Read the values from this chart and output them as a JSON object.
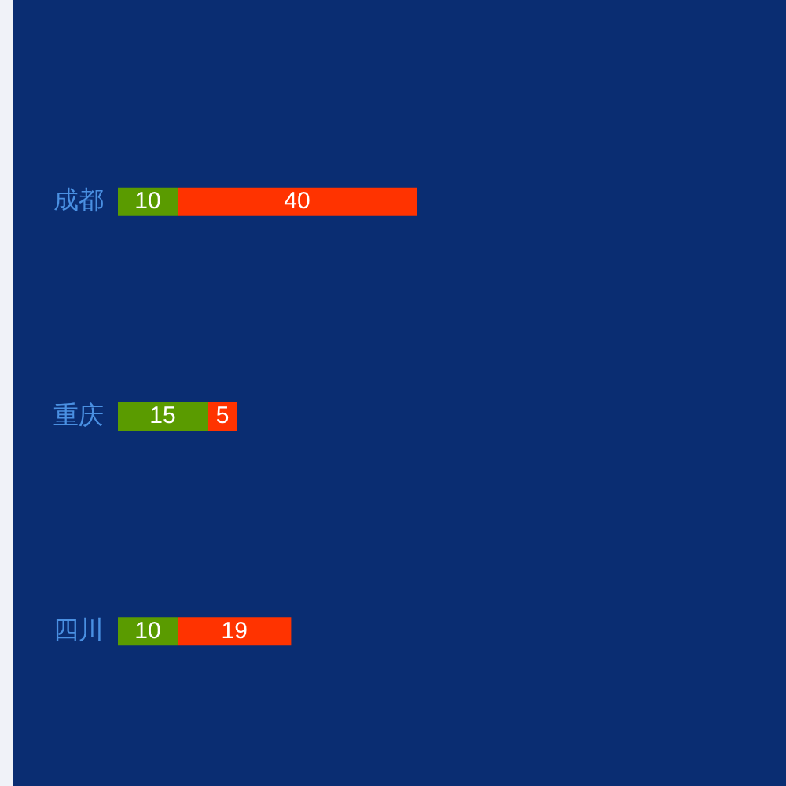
{
  "chart_data": {
    "type": "bar",
    "orientation": "horizontal",
    "stacked": true,
    "tick_labels": "y",
    "data_labels": true,
    "categories": [
      "成都",
      "重庆",
      "四川"
    ],
    "series": [
      {
        "color": "#5a9b00",
        "values": [
          10,
          15,
          10
        ]
      },
      {
        "color": "#ff3300",
        "values": [
          40,
          5,
          19
        ]
      }
    ]
  }
}
